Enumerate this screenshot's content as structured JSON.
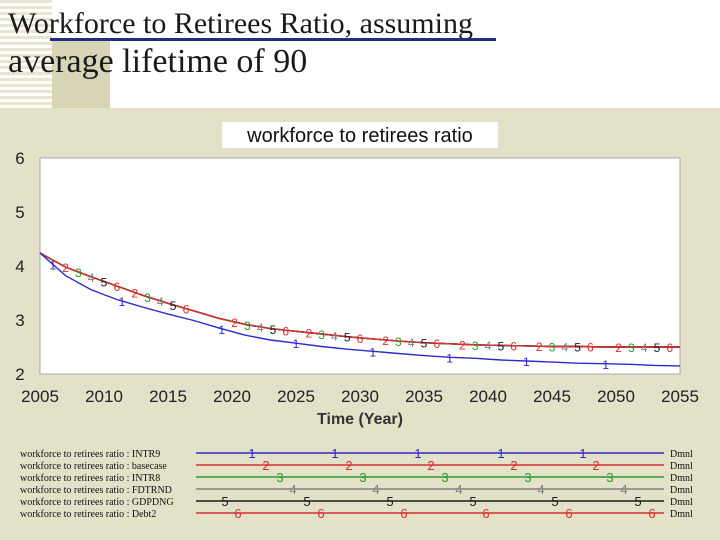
{
  "slide": {
    "title_line1": "Workforce to Retirees Ratio, assuming",
    "title_line2": "average lifetime of 90"
  },
  "chart_data": {
    "type": "line",
    "title": "workforce to retirees ratio",
    "xlabel": "Time (Year)",
    "ylabel": "",
    "xlim": [
      2005,
      2055
    ],
    "ylim": [
      2,
      6
    ],
    "x_ticks": [
      2005,
      2010,
      2015,
      2020,
      2025,
      2030,
      2035,
      2040,
      2045,
      2050,
      2055
    ],
    "y_ticks": [
      2,
      3,
      4,
      5,
      6
    ],
    "grid": false,
    "legend_position": "bottom",
    "units": "Dmnl",
    "x": [
      2005,
      2007,
      2009,
      2011,
      2013,
      2015,
      2017,
      2019,
      2021,
      2023,
      2025,
      2027,
      2029,
      2031,
      2033,
      2035,
      2037,
      2039,
      2041,
      2043,
      2045,
      2047,
      2049,
      2051,
      2053,
      2055
    ],
    "series": [
      {
        "name": "workforce to retirees ratio : INTR9",
        "marker": "1",
        "color": "#2b2bcc",
        "values": [
          4.24,
          3.82,
          3.56,
          3.38,
          3.24,
          3.11,
          2.99,
          2.85,
          2.72,
          2.63,
          2.57,
          2.51,
          2.46,
          2.42,
          2.38,
          2.34,
          2.31,
          2.29,
          2.26,
          2.24,
          2.22,
          2.2,
          2.19,
          2.18,
          2.16,
          2.15
        ]
      },
      {
        "name": "workforce to retirees ratio : basecase",
        "marker": "2",
        "color": "#d83030",
        "values": [
          4.24,
          3.98,
          3.8,
          3.63,
          3.46,
          3.31,
          3.17,
          3.03,
          2.92,
          2.84,
          2.79,
          2.74,
          2.69,
          2.65,
          2.61,
          2.58,
          2.56,
          2.54,
          2.53,
          2.52,
          2.51,
          2.51,
          2.5,
          2.5,
          2.5,
          2.5
        ]
      },
      {
        "name": "workforce to retirees ratio : INTR8",
        "marker": "3",
        "color": "#2a9a2a",
        "values": [
          4.24,
          3.98,
          3.8,
          3.63,
          3.46,
          3.31,
          3.17,
          3.03,
          2.92,
          2.84,
          2.79,
          2.74,
          2.69,
          2.65,
          2.61,
          2.58,
          2.56,
          2.54,
          2.53,
          2.52,
          2.51,
          2.51,
          2.5,
          2.5,
          2.5,
          2.5
        ]
      },
      {
        "name": "workforce to retirees ratio : FDTRND",
        "marker": "4",
        "color": "#808080",
        "values": [
          4.24,
          3.98,
          3.8,
          3.63,
          3.46,
          3.31,
          3.17,
          3.03,
          2.92,
          2.84,
          2.79,
          2.74,
          2.69,
          2.65,
          2.61,
          2.58,
          2.56,
          2.54,
          2.53,
          2.52,
          2.51,
          2.51,
          2.5,
          2.5,
          2.5,
          2.5
        ]
      },
      {
        "name": "workforce to retirees ratio : GDPDNG",
        "marker": "5",
        "color": "#1a1a1a",
        "values": [
          4.24,
          3.98,
          3.8,
          3.63,
          3.46,
          3.31,
          3.17,
          3.03,
          2.92,
          2.84,
          2.79,
          2.74,
          2.69,
          2.65,
          2.61,
          2.58,
          2.56,
          2.54,
          2.53,
          2.52,
          2.51,
          2.51,
          2.5,
          2.5,
          2.5,
          2.5
        ]
      },
      {
        "name": "workforce to retirees ratio : Debt2",
        "marker": "6",
        "color": "#d83030",
        "values": [
          4.24,
          3.98,
          3.8,
          3.63,
          3.46,
          3.31,
          3.17,
          3.03,
          2.92,
          2.84,
          2.79,
          2.74,
          2.69,
          2.65,
          2.61,
          2.58,
          2.56,
          2.54,
          2.53,
          2.52,
          2.51,
          2.51,
          2.5,
          2.5,
          2.5,
          2.5
        ]
      }
    ]
  }
}
